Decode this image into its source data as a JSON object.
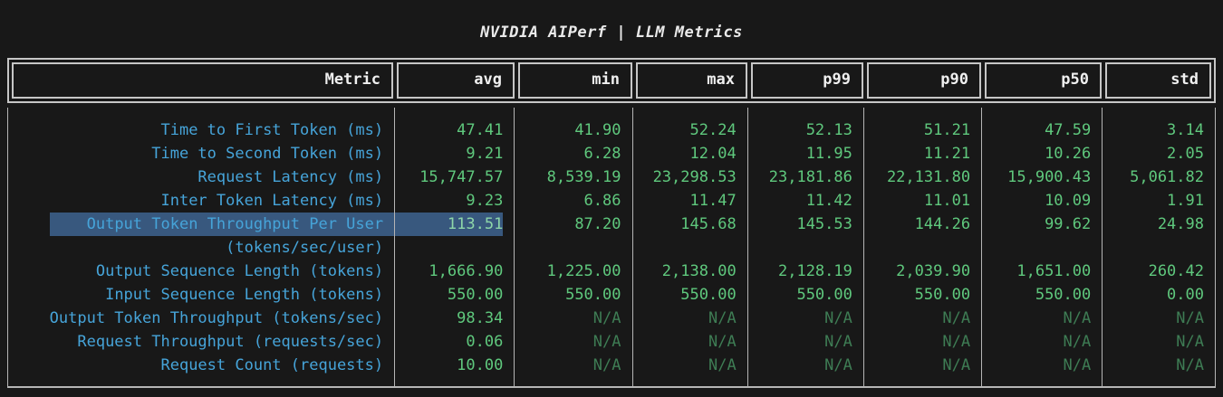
{
  "title": "NVIDIA AIPerf | LLM Metrics",
  "colors": {
    "background": "#181818",
    "border": "#c6c6c6",
    "border_dim": "#b5b5b5",
    "title_text": "#e9e9e9",
    "header_text": "#f0f0f0",
    "metric_text": "#46a4d9",
    "value_text": "#5fc87d",
    "na_text": "#3e7c54",
    "highlight_bg": "#38587e",
    "value_highlight_text": "#8ed7a9"
  },
  "table": {
    "columns": [
      "Metric",
      "avg",
      "min",
      "max",
      "p99",
      "p90",
      "p50",
      "std"
    ],
    "rows": [
      {
        "metric": "Time to First Token (ms)",
        "values": [
          "47.41",
          "41.90",
          "52.24",
          "52.13",
          "51.21",
          "47.59",
          "3.14"
        ]
      },
      {
        "metric": "Time to Second Token (ms)",
        "values": [
          "9.21",
          "6.28",
          "12.04",
          "11.95",
          "11.21",
          "10.26",
          "2.05"
        ]
      },
      {
        "metric": "Request Latency (ms)",
        "values": [
          "15,747.57",
          "8,539.19",
          "23,298.53",
          "23,181.86",
          "22,131.80",
          "15,900.43",
          "5,061.82"
        ]
      },
      {
        "metric": "Inter Token Latency (ms)",
        "values": [
          "9.23",
          "6.86",
          "11.47",
          "11.42",
          "11.01",
          "10.09",
          "1.91"
        ]
      },
      {
        "metric": "Output Token Throughput Per User",
        "values": [
          "113.51",
          "87.20",
          "145.68",
          "145.53",
          "144.26",
          "99.62",
          "24.98"
        ],
        "highlighted": true
      },
      {
        "metric": "(tokens/sec/user)",
        "values": [
          "",
          "",
          "",
          "",
          "",
          "",
          ""
        ],
        "continuation": true
      },
      {
        "metric": "Output Sequence Length (tokens)",
        "values": [
          "1,666.90",
          "1,225.00",
          "2,138.00",
          "2,128.19",
          "2,039.90",
          "1,651.00",
          "260.42"
        ]
      },
      {
        "metric": "Input Sequence Length (tokens)",
        "values": [
          "550.00",
          "550.00",
          "550.00",
          "550.00",
          "550.00",
          "550.00",
          "0.00"
        ]
      },
      {
        "metric": "Output Token Throughput (tokens/sec)",
        "values": [
          "98.34",
          "N/A",
          "N/A",
          "N/A",
          "N/A",
          "N/A",
          "N/A"
        ]
      },
      {
        "metric": "Request Throughput (requests/sec)",
        "values": [
          "0.06",
          "N/A",
          "N/A",
          "N/A",
          "N/A",
          "N/A",
          "N/A"
        ]
      },
      {
        "metric": "Request Count (requests)",
        "values": [
          "10.00",
          "N/A",
          "N/A",
          "N/A",
          "N/A",
          "N/A",
          "N/A"
        ]
      }
    ]
  }
}
